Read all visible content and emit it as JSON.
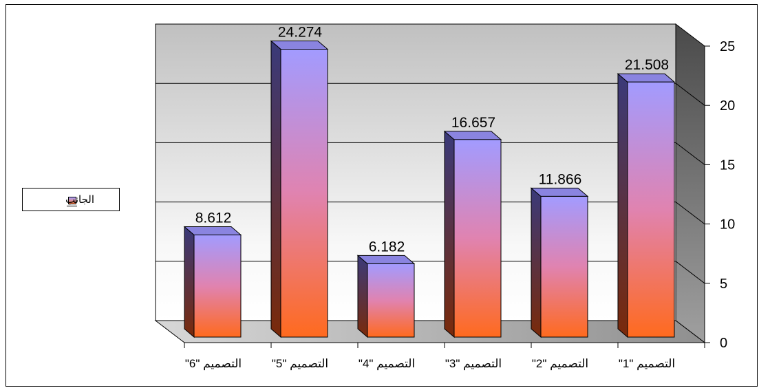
{
  "legend": {
    "label": "الجانب"
  },
  "colors": {
    "bar_top": "#a29bff",
    "bar_mid": "#e083b0",
    "bar_bottom": "#ff6a1e",
    "bar_side": "#5a2a3a",
    "wall_top": "#c4c4c4",
    "floor": "#9a9a9a",
    "side_wall": "#808080"
  },
  "chart_data": {
    "type": "bar",
    "categories": [
      "التصميم \"1\"",
      "التصميم \"2\"",
      "التصميم \"3\"",
      "التصميم \"4\"",
      "التصميم \"5\"",
      "التصميم \"6\""
    ],
    "series": [
      {
        "name": "الجانب",
        "values": [
          21.508,
          11.866,
          16.657,
          6.182,
          24.274,
          8.612
        ]
      }
    ],
    "data_labels": [
      "21.508",
      "11.866",
      "16.657",
      "6.182",
      "24.274",
      "8.612"
    ],
    "yticks": [
      "0",
      "5",
      "10",
      "15",
      "20",
      "25"
    ],
    "ylim": [
      0,
      25
    ],
    "x_reversed": true,
    "y_axis_position": "right",
    "legend_position": "left",
    "grid": true,
    "three_d": true
  }
}
